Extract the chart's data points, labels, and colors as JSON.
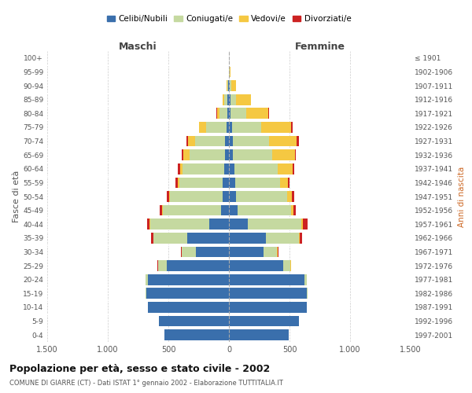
{
  "age_groups": [
    "0-4",
    "5-9",
    "10-14",
    "15-19",
    "20-24",
    "25-29",
    "30-34",
    "35-39",
    "40-44",
    "45-49",
    "50-54",
    "55-59",
    "60-64",
    "65-69",
    "70-74",
    "75-79",
    "80-84",
    "85-89",
    "90-94",
    "95-99",
    "100+"
  ],
  "birth_years": [
    "1997-2001",
    "1992-1996",
    "1987-1991",
    "1982-1986",
    "1977-1981",
    "1972-1976",
    "1967-1971",
    "1962-1966",
    "1957-1961",
    "1952-1956",
    "1947-1951",
    "1942-1946",
    "1937-1941",
    "1932-1936",
    "1927-1931",
    "1922-1926",
    "1917-1921",
    "1912-1916",
    "1907-1911",
    "1902-1906",
    "≤ 1901"
  ],
  "colors": {
    "celibe": "#3a6fac",
    "coniugato": "#c5d9a0",
    "vedovo": "#f5c842",
    "divorziato": "#cc2222"
  },
  "maschi": {
    "celibe": [
      530,
      575,
      670,
      685,
      670,
      510,
      275,
      345,
      160,
      65,
      55,
      50,
      40,
      35,
      30,
      20,
      15,
      10,
      5,
      0,
      0
    ],
    "coniugato": [
      0,
      0,
      0,
      5,
      20,
      75,
      115,
      280,
      490,
      480,
      430,
      360,
      340,
      290,
      250,
      170,
      60,
      30,
      10,
      0,
      0
    ],
    "vedovo": [
      0,
      0,
      0,
      0,
      0,
      0,
      0,
      0,
      5,
      5,
      10,
      15,
      25,
      50,
      60,
      55,
      25,
      10,
      5,
      0,
      0
    ],
    "divorziato": [
      0,
      0,
      0,
      0,
      0,
      5,
      5,
      15,
      20,
      20,
      15,
      15,
      15,
      15,
      10,
      5,
      5,
      0,
      0,
      0,
      0
    ]
  },
  "femmine": {
    "nubile": [
      495,
      580,
      645,
      645,
      625,
      445,
      285,
      305,
      155,
      70,
      60,
      55,
      45,
      35,
      30,
      25,
      15,
      10,
      5,
      0,
      0
    ],
    "coniugata": [
      0,
      0,
      0,
      5,
      20,
      60,
      110,
      270,
      440,
      440,
      420,
      370,
      360,
      320,
      300,
      240,
      130,
      50,
      15,
      5,
      0
    ],
    "vedova": [
      0,
      0,
      0,
      0,
      0,
      5,
      5,
      10,
      15,
      20,
      40,
      60,
      120,
      190,
      230,
      250,
      180,
      120,
      40,
      5,
      0
    ],
    "divorziata": [
      0,
      0,
      0,
      0,
      0,
      5,
      10,
      20,
      40,
      25,
      20,
      15,
      15,
      10,
      15,
      10,
      5,
      5,
      0,
      0,
      0
    ]
  },
  "title": "Popolazione per età, sesso e stato civile - 2002",
  "subtitle": "COMUNE DI GIARRE (CT) - Dati ISTAT 1° gennaio 2002 - Elaborazione TUTTITALIA.IT",
  "xlabel_left": "Maschi",
  "xlabel_right": "Femmine",
  "ylabel_left": "Fasce di età",
  "ylabel_right": "Anni di nascita",
  "xlim": 1500,
  "legend_labels": [
    "Celibi/Nubili",
    "Coniugati/e",
    "Vedovi/e",
    "Divorziati/e"
  ],
  "bg_color": "#ffffff",
  "grid_color": "#cccccc"
}
